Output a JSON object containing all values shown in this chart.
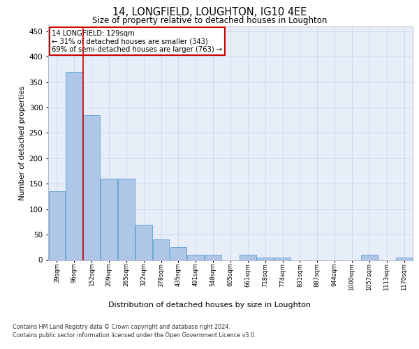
{
  "title": "14, LONGFIELD, LOUGHTON, IG10 4EE",
  "subtitle": "Size of property relative to detached houses in Loughton",
  "xlabel": "Distribution of detached houses by size in Loughton",
  "ylabel": "Number of detached properties",
  "categories": [
    "39sqm",
    "96sqm",
    "152sqm",
    "209sqm",
    "265sqm",
    "322sqm",
    "378sqm",
    "435sqm",
    "491sqm",
    "548sqm",
    "605sqm",
    "661sqm",
    "718sqm",
    "774sqm",
    "831sqm",
    "887sqm",
    "944sqm",
    "1000sqm",
    "1057sqm",
    "1113sqm",
    "1170sqm"
  ],
  "values": [
    135,
    370,
    285,
    160,
    160,
    70,
    40,
    25,
    10,
    10,
    0,
    10,
    5,
    5,
    0,
    0,
    0,
    0,
    10,
    0,
    5
  ],
  "bar_color": "#aec6e8",
  "bar_edge_color": "#5a9fd4",
  "red_line_x": 1.5,
  "annotation_text": "14 LONGFIELD: 129sqm\n← 31% of detached houses are smaller (343)\n69% of semi-detached houses are larger (763) →",
  "annotation_box_color": "#ffffff",
  "annotation_box_edge_color": "#cc0000",
  "ylim": [
    0,
    460
  ],
  "yticks": [
    0,
    50,
    100,
    150,
    200,
    250,
    300,
    350,
    400,
    450
  ],
  "grid_color": "#d0d8e8",
  "background_color": "#e8eef8",
  "footer_line1": "Contains HM Land Registry data © Crown copyright and database right 2024.",
  "footer_line2": "Contains public sector information licensed under the Open Government Licence v3.0."
}
